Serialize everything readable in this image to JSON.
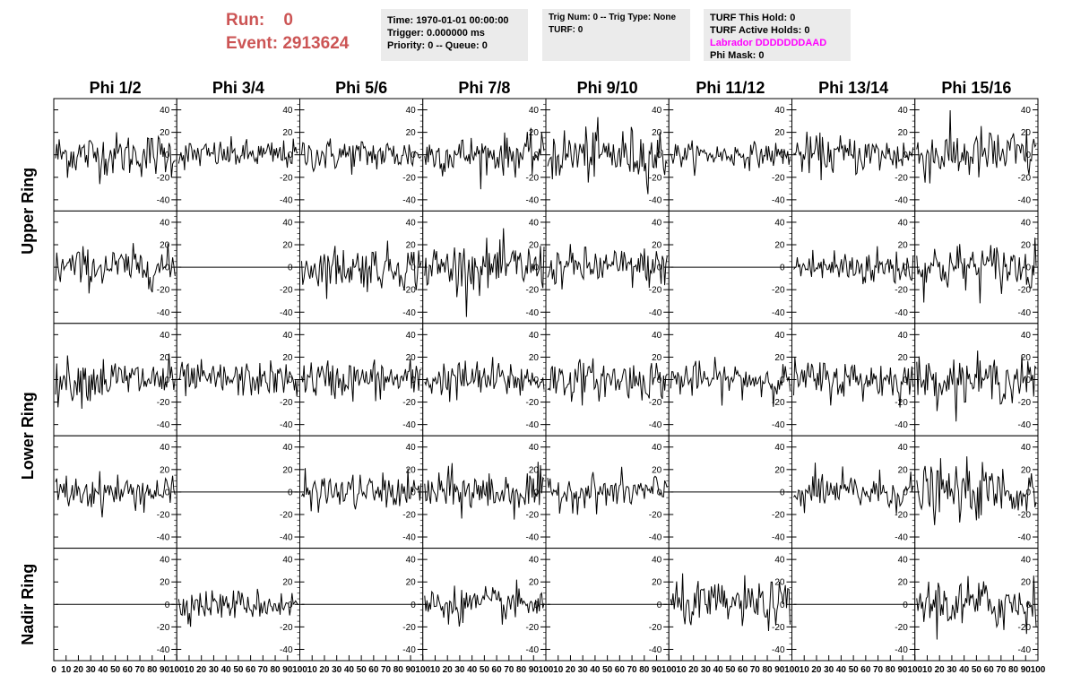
{
  "header": {
    "run_label": "Run:",
    "run_value": "0",
    "event_label": "Event:",
    "event_value": "2913624"
  },
  "info_boxes": [
    {
      "lines": [
        "Time: 1970-01-01 00:00:00",
        "Trigger: 0.000000 ms",
        "Priority: 0 -- Queue: 0"
      ]
    },
    {
      "lines": [
        "Trig Num: 0 -- Trig Type: None",
        "",
        "TURF: 0"
      ]
    },
    {
      "lines": [
        "TURF This Hold: 0",
        "TURF Active Holds: 0",
        "Labrador DDDDDDDAAD",
        "Phi Mask: 0"
      ]
    }
  ],
  "colors": {
    "run_text": "#cc5555",
    "labrador_text": "#ff00ff",
    "box_bg": "#ebebeb",
    "trace": "#000000"
  },
  "chart_data": {
    "type": "line",
    "column_titles": [
      "Phi 1/2",
      "Phi 3/4",
      "Phi 5/6",
      "Phi 7/8",
      "Phi 9/10",
      "Phi 11/12",
      "Phi 13/14",
      "Phi 15/16"
    ],
    "row_titles": [
      "Upper Ring",
      "Lower Ring",
      "Nadir Ring"
    ],
    "xlim": [
      0,
      100
    ],
    "ylim": [
      -50,
      50
    ],
    "x_ticks": [
      "0",
      "10",
      "20",
      "30",
      "40",
      "50",
      "60",
      "70",
      "80",
      "90",
      "100"
    ],
    "y_ticks": [
      "40",
      "20",
      "0",
      "-20",
      "-40"
    ],
    "grid": false,
    "panel_rows": 5,
    "panel_cols": 8,
    "flat_panels": [
      [
        1,
        1
      ],
      [
        1,
        5
      ],
      [
        3,
        1
      ],
      [
        3,
        5
      ],
      [
        4,
        0
      ],
      [
        4,
        2
      ],
      [
        4,
        4
      ],
      [
        4,
        6
      ]
    ],
    "amplitude": [
      [
        18,
        12,
        14,
        16,
        22,
        10,
        16,
        22
      ],
      [
        16,
        0,
        18,
        20,
        16,
        0,
        16,
        20
      ],
      [
        18,
        14,
        16,
        16,
        16,
        14,
        16,
        18
      ],
      [
        14,
        0,
        14,
        18,
        14,
        0,
        16,
        22
      ],
      [
        0,
        12,
        0,
        14,
        0,
        18,
        0,
        22
      ]
    ]
  }
}
